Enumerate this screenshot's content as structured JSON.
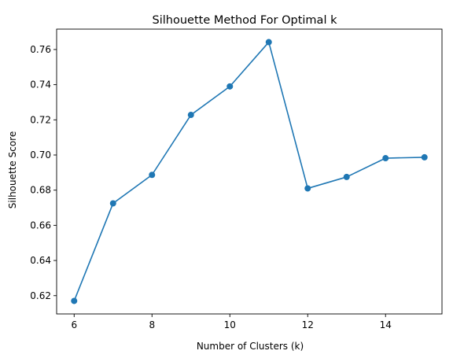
{
  "chart_data": {
    "type": "line",
    "title": "Silhouette Method For Optimal k",
    "xlabel": "Number of Clusters (k)",
    "ylabel": "Silhouette Score",
    "x": [
      6,
      7,
      8,
      9,
      10,
      11,
      12,
      13,
      14,
      15
    ],
    "series": [
      {
        "values": [
          0.617,
          0.6725,
          0.6887,
          0.7228,
          0.739,
          0.7642,
          0.681,
          0.6875,
          0.6982,
          0.6987
        ],
        "color": "#1f77b4",
        "marker": "circle"
      }
    ],
    "xlim": [
      5.55,
      15.45
    ],
    "ylim": [
      0.6096,
      0.7716
    ],
    "xticks": [
      6,
      8,
      10,
      12,
      14
    ],
    "xtick_labels": [
      "6",
      "8",
      "10",
      "12",
      "14"
    ],
    "yticks": [
      0.62,
      0.64,
      0.66,
      0.68,
      0.7,
      0.72,
      0.74,
      0.76
    ],
    "ytick_labels": [
      "0.62",
      "0.64",
      "0.66",
      "0.68",
      "0.70",
      "0.72",
      "0.74",
      "0.76"
    ],
    "grid": false,
    "legend": "none"
  }
}
